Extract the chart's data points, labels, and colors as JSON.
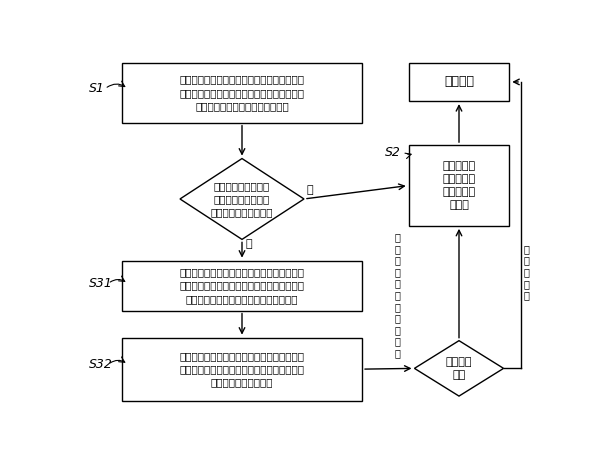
{
  "bg_color": "#ffffff",
  "fig_width": 6.03,
  "fig_height": 4.71,
  "dpi": 100,
  "s1_text": "主动配电网电压管理子系统根据配电网的当前\n有功功率及网络拓扑计算电压控制指标，并与\n无功电压控制器交互电压控制指标",
  "s2_diamond_text": "当电压越限时，判断\n支路顶点电压值是否\n在电压控制指标范围内",
  "s2r_text": "无功电压控\n制器对电压\n进行就地控\n制调节",
  "recovery_text": "电压恢复",
  "s31_text": "无功电压控制器向主动配电网电压管理子系统\n发送协助控制指令，主动配电网电压管理子系\n统计算所述协调电压控制器的电压调整值",
  "s32_text": "协调电压控制器根据电压调整值对支路电压进\n行控制调节，使所有支路的顶点电压值均在所\n述电压控制指标范围内",
  "judge_text": "电压越限\n判断",
  "yes_label": "是",
  "no_label": "否",
  "partial_label": "部\n分\n支\n路\n还\n存\n在\n电\n压\n越\n限",
  "no_overvolt_label": "无\n电\n压\n越\n限",
  "s1_label": "S1",
  "s2_label": "S2",
  "s31_label": "S31",
  "s32_label": "S32"
}
